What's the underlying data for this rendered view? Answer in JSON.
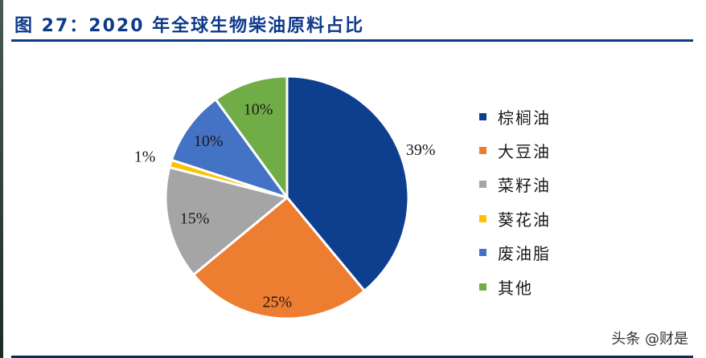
{
  "header": {
    "title": "图 27：2020 年全球生物柴油原料占比"
  },
  "chart_data": {
    "type": "pie",
    "title": "2020 年全球生物柴油原料占比",
    "start_angle_deg": 0,
    "direction": "clockwise",
    "slices": [
      {
        "label": "棕榈油",
        "value": 39,
        "display": "39%",
        "color": "#0e3f8f"
      },
      {
        "label": "大豆油",
        "value": 25,
        "display": "25%",
        "color": "#ed7d31"
      },
      {
        "label": "菜籽油",
        "value": 15,
        "display": "15%",
        "color": "#a5a5a5"
      },
      {
        "label": "葵花油",
        "value": 1,
        "display": "1%",
        "color": "#ffc000"
      },
      {
        "label": "废油脂",
        "value": 10,
        "display": "10%",
        "color": "#4472c4"
      },
      {
        "label": "其他",
        "value": 10,
        "display": "10%",
        "color": "#70ad47"
      }
    ],
    "legend_position": "right"
  },
  "legend": {
    "items": [
      {
        "label": "棕榈油",
        "color": "#0e3f8f"
      },
      {
        "label": "大豆油",
        "color": "#ed7d31"
      },
      {
        "label": "菜籽油",
        "color": "#a5a5a5"
      },
      {
        "label": "葵花油",
        "color": "#ffc000"
      },
      {
        "label": "废油脂",
        "color": "#4472c4"
      },
      {
        "label": "其他",
        "color": "#70ad47"
      }
    ]
  },
  "watermark": "头条 @财是"
}
